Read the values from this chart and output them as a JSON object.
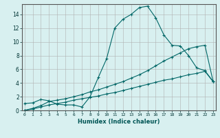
{
  "xlabel": "Humidex (Indice chaleur)",
  "background_color": "#d8f0f0",
  "grid_color": "#b0b0b0",
  "line_color": "#006666",
  "x_ticks": [
    0,
    1,
    2,
    3,
    4,
    5,
    6,
    7,
    8,
    9,
    10,
    11,
    12,
    13,
    14,
    15,
    16,
    17,
    18,
    19,
    20,
    21,
    22,
    23
  ],
  "y_ticks": [
    0,
    2,
    4,
    6,
    8,
    10,
    12,
    14
  ],
  "xlim": [
    -0.3,
    23.3
  ],
  "ylim": [
    0,
    15.5
  ],
  "line1_x": [
    0,
    1,
    2,
    3,
    4,
    5,
    6,
    7,
    8,
    9,
    10,
    11,
    12,
    13,
    14,
    15,
    16,
    17,
    18,
    19,
    20,
    21,
    22,
    23
  ],
  "line1_y": [
    1.0,
    1.1,
    1.6,
    1.4,
    0.9,
    0.8,
    0.8,
    0.5,
    2.0,
    4.8,
    7.5,
    12.0,
    13.3,
    14.0,
    15.0,
    15.2,
    13.5,
    11.0,
    9.5,
    9.4,
    8.0,
    6.2,
    5.8,
    4.2
  ],
  "line2_x": [
    0,
    1,
    2,
    3,
    4,
    5,
    6,
    7,
    8,
    9,
    10,
    11,
    12,
    13,
    14,
    15,
    16,
    17,
    18,
    19,
    20,
    21,
    22,
    23
  ],
  "line2_y": [
    0.0,
    0.3,
    0.7,
    1.3,
    1.5,
    1.7,
    2.0,
    2.3,
    2.7,
    3.0,
    3.4,
    3.8,
    4.2,
    4.7,
    5.2,
    5.8,
    6.5,
    7.2,
    7.8,
    8.4,
    9.0,
    9.3,
    9.5,
    4.2
  ],
  "line3_x": [
    0,
    1,
    2,
    3,
    4,
    5,
    6,
    7,
    8,
    9,
    10,
    11,
    12,
    13,
    14,
    15,
    16,
    17,
    18,
    19,
    20,
    21,
    22,
    23
  ],
  "line3_y": [
    0.0,
    0.2,
    0.5,
    0.8,
    1.0,
    1.2,
    1.5,
    1.7,
    1.9,
    2.1,
    2.4,
    2.6,
    2.9,
    3.2,
    3.5,
    3.8,
    4.1,
    4.4,
    4.6,
    4.9,
    5.2,
    5.4,
    5.7,
    4.2
  ]
}
